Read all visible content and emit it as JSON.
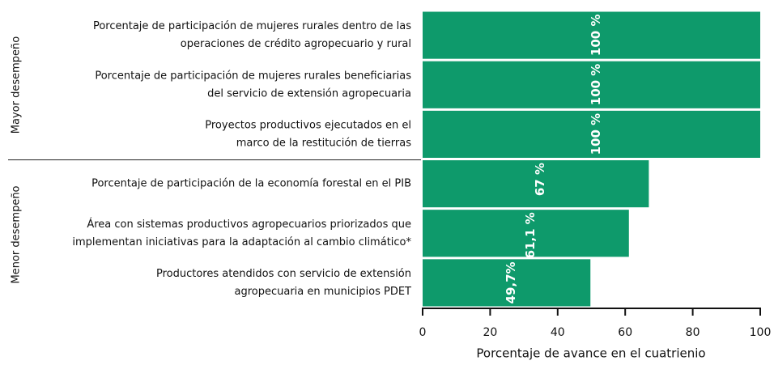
{
  "chart_data": {
    "type": "barh",
    "categories": [
      [
        "Porcentaje de participación de mujeres rurales dentro de las",
        "operaciones de crédito agropecuario y rural"
      ],
      [
        "Porcentaje de participación de mujeres rurales beneficiarias",
        "del servicio de extensión agropecuaria"
      ],
      [
        "Proyectos productivos ejecutados en el",
        "marco de la restitución de tierras"
      ],
      [
        "Porcentaje de participación de la economía forestal en el PIB"
      ],
      [
        "Área con sistemas productivos agropecuarios priorizados que",
        "implementan iniciativas para la adaptación al cambio climático*"
      ],
      [
        "Productores atendidos con servicio de extensión",
        "agropecuaria en municipios PDET"
      ]
    ],
    "values": [
      100,
      100,
      100,
      67,
      61.1,
      49.7
    ],
    "value_labels": [
      "100 %",
      "100 %",
      "100 %",
      "67 %",
      "61,1 %",
      "49,7%"
    ],
    "groups": [
      "Mayor desempeño",
      "Menor desempeño"
    ],
    "color": "#0e9a6b",
    "xlabel": "Porcentaje de avance en el cuatrienio",
    "xlim": [
      0,
      100
    ],
    "xticks": [
      0,
      20,
      40,
      60,
      80,
      100
    ]
  }
}
